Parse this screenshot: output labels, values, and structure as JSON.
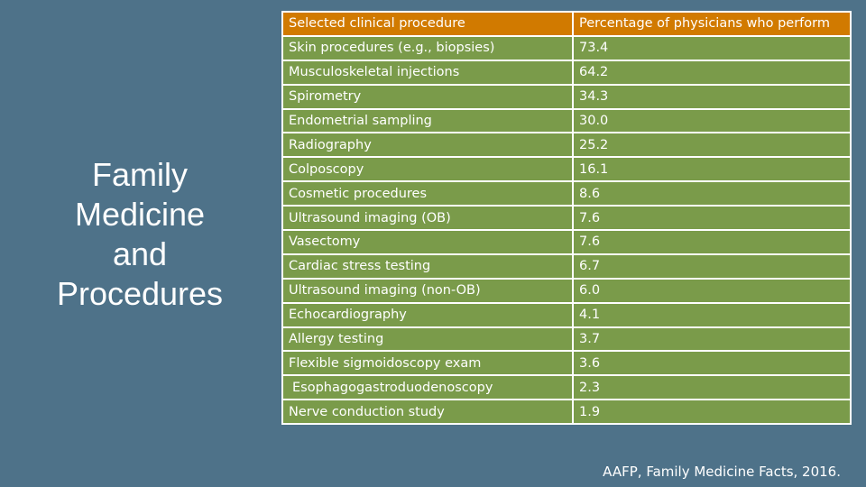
{
  "slide": {
    "title_lines": [
      "Family",
      "Medicine",
      "and",
      "Procedures"
    ],
    "citation": "AAFP, Family Medicine Facts, 2016."
  },
  "table": {
    "headers": [
      "Selected clinical procedure",
      "Percentage of physicians who perform"
    ],
    "rows": [
      {
        "procedure": "Skin procedures (e.g., biopsies)",
        "percentage": "73.4"
      },
      {
        "procedure": "Musculoskeletal injections",
        "percentage": "64.2"
      },
      {
        "procedure": "Spirometry",
        "percentage": "34.3"
      },
      {
        "procedure": "Endometrial sampling",
        "percentage": "30.0"
      },
      {
        "procedure": "Radiography",
        "percentage": "25.2"
      },
      {
        "procedure": "Colposcopy",
        "percentage": "16.1"
      },
      {
        "procedure": "Cosmetic procedures",
        "percentage": "8.6"
      },
      {
        "procedure": "Ultrasound imaging (OB)",
        "percentage": "7.6"
      },
      {
        "procedure": "Vasectomy",
        "percentage": "7.6"
      },
      {
        "procedure": "Cardiac stress testing",
        "percentage": "6.7"
      },
      {
        "procedure": "Ultrasound imaging (non-OB)",
        "percentage": "6.0"
      },
      {
        "procedure": "Echocardiography",
        "percentage": "4.1"
      },
      {
        "procedure": "Allergy testing",
        "percentage": "3.7"
      },
      {
        "procedure": "Flexible sigmoidoscopy exam",
        "percentage": "3.6"
      },
      {
        "procedure": "Esophagogastroduodenoscopy",
        "percentage": "2.3"
      },
      {
        "procedure": "Nerve conduction study",
        "percentage": "1.9"
      }
    ]
  }
}
